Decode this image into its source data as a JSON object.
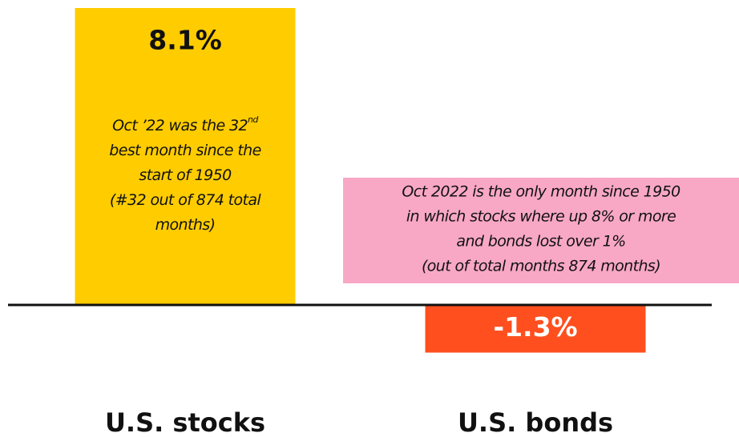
{
  "chart_data": {
    "type": "bar",
    "categories": [
      "U.S. stocks",
      "U.S. bonds"
    ],
    "values": [
      8.1,
      -1.3
    ],
    "value_labels": [
      "8.1%",
      "-1.3%"
    ],
    "colors": [
      "#ffcc00",
      "#ff4f1f"
    ],
    "ylim": [
      -2,
      8.1
    ],
    "annotations": [
      {
        "lines": [
          "Oct ’22 was the 32",
          "best month since the",
          "start of 1950",
          "(#32 out of 874 total",
          "months)"
        ],
        "superscript": "nd"
      },
      {
        "lines": [
          "Oct 2022 is the only month since 1950",
          "in which stocks where up 8% or more",
          "and bonds lost over 1%",
          "(out of total months 874 months)"
        ],
        "color": "#f8a8c4"
      }
    ]
  }
}
